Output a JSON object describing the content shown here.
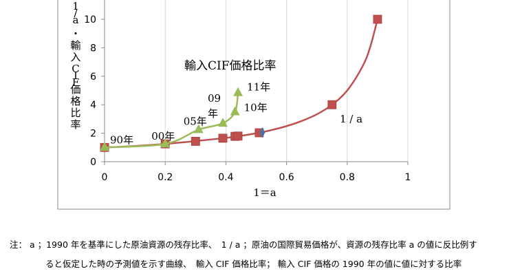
{
  "chart_data": {
    "type": "scatter",
    "xlabel": "1＝a",
    "ylabel": "1/a　・輸入CIF価格比率",
    "xlim": [
      0,
      1
    ],
    "ylim": [
      0,
      10
    ],
    "x_ticks": [
      "0",
      "0.2",
      "0.4",
      "0.6",
      "0.8",
      "1"
    ],
    "y_ticks": [
      "0",
      "2",
      "4",
      "6",
      "8",
      "10"
    ],
    "grid": "vertical",
    "series": [
      {
        "name": "1 / a",
        "color": "#c0504d",
        "marker": "square",
        "curve_points": [
          [
            0,
            1
          ],
          [
            0.1,
            1.1
          ],
          [
            0.2,
            1.25
          ],
          [
            0.3,
            1.45
          ],
          [
            0.4,
            1.67
          ],
          [
            0.45,
            1.82
          ],
          [
            0.5,
            2.0
          ],
          [
            0.55,
            2.22
          ],
          [
            0.6,
            2.5
          ],
          [
            0.65,
            2.86
          ],
          [
            0.7,
            3.33
          ],
          [
            0.75,
            4.0
          ],
          [
            0.8,
            5.0
          ],
          [
            0.85,
            6.67
          ],
          [
            0.875,
            8.0
          ],
          [
            0.9,
            10.0
          ]
        ],
        "points": [
          [
            0,
            1.0
          ],
          [
            0.2,
            1.25
          ],
          [
            0.3,
            1.43
          ],
          [
            0.39,
            1.65
          ],
          [
            0.43,
            1.78
          ],
          [
            0.44,
            1.8
          ],
          [
            0.51,
            2.03
          ],
          [
            0.75,
            4.0
          ],
          [
            0.9,
            10.0
          ]
        ]
      },
      {
        "name": "輸入CIF価格比率",
        "color": "#9bbb59",
        "marker": "triangle",
        "points": [
          [
            0,
            1.0
          ],
          [
            0.2,
            1.25
          ],
          [
            0.31,
            2.25
          ],
          [
            0.39,
            2.7
          ],
          [
            0.43,
            3.5
          ],
          [
            0.44,
            4.85
          ]
        ],
        "point_labels": [
          "90年",
          "00年",
          "05年",
          "09\n年",
          "10年",
          "11年"
        ]
      }
    ],
    "extra_marker": {
      "x": 0.52,
      "y": 2.05,
      "color": "#4f6fa8",
      "shape": "diamond"
    },
    "annotations": {
      "curve_label": "1 / a",
      "series_label": "輸入CIF価格比率"
    }
  },
  "notes": {
    "line1": "注： a ；1990 年を基準にした原油資源の残存比率、　1 / a ；原油の国際貿易価格が、資源の残存比率 a の値に反比例す",
    "line2": "ると仮定した時の予測値を示す曲線、　輸入 CIF 価格比率；  輸入 CIF 価格の 1990 年の値に値に対する比率"
  }
}
